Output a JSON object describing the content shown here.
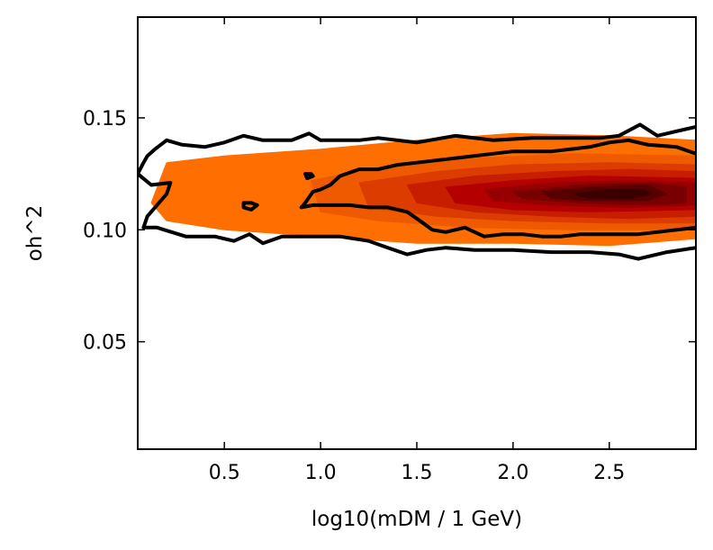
{
  "chart_data": {
    "type": "contour",
    "title": "",
    "xlabel": "log10(mDM / 1 GeV)",
    "ylabel": "oh^2",
    "xlim": [
      0.05,
      2.95
    ],
    "ylim": [
      0.002,
      0.195
    ],
    "xticks": [
      {
        "value": 0.5,
        "label": "0.5"
      },
      {
        "value": 1.0,
        "label": "1.0"
      },
      {
        "value": 1.5,
        "label": "1.5"
      },
      {
        "value": 2.0,
        "label": "2.0"
      },
      {
        "value": 2.5,
        "label": "2.5"
      }
    ],
    "yticks": [
      {
        "value": 0.05,
        "label": "0.05"
      },
      {
        "value": 0.1,
        "label": "0.10"
      },
      {
        "value": 0.15,
        "label": "0.15"
      }
    ],
    "colormap": [
      "#ff6e00",
      "#ef5a00",
      "#dc3c00",
      "#c81e00",
      "#b40000",
      "#960000",
      "#780000",
      "#580000",
      "#3a0000"
    ],
    "filled_levels": [
      {
        "level": 1,
        "color": "#ff6e00",
        "polygon": [
          [
            0.2,
            0.13
          ],
          [
            0.5,
            0.133
          ],
          [
            1.0,
            0.136
          ],
          [
            1.5,
            0.14
          ],
          [
            2.0,
            0.143
          ],
          [
            2.5,
            0.142
          ],
          [
            2.95,
            0.14
          ],
          [
            2.95,
            0.096
          ],
          [
            2.5,
            0.093
          ],
          [
            2.0,
            0.094
          ],
          [
            1.5,
            0.094
          ],
          [
            1.0,
            0.097
          ],
          [
            0.5,
            0.1
          ],
          [
            0.2,
            0.104
          ],
          [
            0.12,
            0.112
          ]
        ]
      },
      {
        "level": 2,
        "color": "#ef5a00",
        "polygon": [
          [
            0.95,
            0.122
          ],
          [
            1.3,
            0.128
          ],
          [
            1.8,
            0.132
          ],
          [
            2.3,
            0.134
          ],
          [
            2.95,
            0.133
          ],
          [
            2.95,
            0.1
          ],
          [
            2.3,
            0.1
          ],
          [
            1.8,
            0.101
          ],
          [
            1.3,
            0.104
          ],
          [
            1.0,
            0.108
          ]
        ]
      },
      {
        "level": 3,
        "color": "#dc3c00",
        "polygon": [
          [
            1.2,
            0.121
          ],
          [
            1.6,
            0.126
          ],
          [
            2.0,
            0.129
          ],
          [
            2.5,
            0.13
          ],
          [
            2.95,
            0.129
          ],
          [
            2.95,
            0.103
          ],
          [
            2.5,
            0.103
          ],
          [
            2.0,
            0.104
          ],
          [
            1.6,
            0.106
          ],
          [
            1.25,
            0.11
          ]
        ]
      },
      {
        "level": 4,
        "color": "#c81e00",
        "polygon": [
          [
            1.45,
            0.12
          ],
          [
            1.8,
            0.124
          ],
          [
            2.2,
            0.126
          ],
          [
            2.6,
            0.127
          ],
          [
            2.95,
            0.126
          ],
          [
            2.95,
            0.106
          ],
          [
            2.6,
            0.105
          ],
          [
            2.2,
            0.106
          ],
          [
            1.8,
            0.108
          ],
          [
            1.5,
            0.112
          ]
        ]
      },
      {
        "level": 5,
        "color": "#b40000",
        "polygon": [
          [
            1.65,
            0.119
          ],
          [
            2.0,
            0.122
          ],
          [
            2.4,
            0.124
          ],
          [
            2.95,
            0.123
          ],
          [
            2.95,
            0.109
          ],
          [
            2.4,
            0.108
          ],
          [
            2.0,
            0.109
          ],
          [
            1.7,
            0.112
          ]
        ]
      },
      {
        "level": 6,
        "color": "#960000",
        "polygon": [
          [
            1.85,
            0.118
          ],
          [
            2.2,
            0.121
          ],
          [
            2.6,
            0.122
          ],
          [
            2.95,
            0.121
          ],
          [
            2.95,
            0.111
          ],
          [
            2.6,
            0.11
          ],
          [
            2.2,
            0.111
          ],
          [
            1.9,
            0.113
          ]
        ]
      },
      {
        "level": 7,
        "color": "#780000",
        "polygon": [
          [
            2.0,
            0.117
          ],
          [
            2.35,
            0.12
          ],
          [
            2.7,
            0.121
          ],
          [
            2.9,
            0.119
          ],
          [
            2.9,
            0.112
          ],
          [
            2.7,
            0.111
          ],
          [
            2.35,
            0.112
          ],
          [
            2.05,
            0.114
          ]
        ]
      },
      {
        "level": 8,
        "color": "#580000",
        "polygon": [
          [
            2.15,
            0.117
          ],
          [
            2.4,
            0.119
          ],
          [
            2.7,
            0.12
          ],
          [
            2.8,
            0.116
          ],
          [
            2.7,
            0.113
          ],
          [
            2.4,
            0.113
          ],
          [
            2.2,
            0.114
          ]
        ]
      },
      {
        "level": 9,
        "color": "#3a0000",
        "polygon": [
          [
            2.3,
            0.116
          ],
          [
            2.5,
            0.118
          ],
          [
            2.68,
            0.118
          ],
          [
            2.72,
            0.116
          ],
          [
            2.62,
            0.114
          ],
          [
            2.4,
            0.114
          ]
        ]
      }
    ],
    "contour_lines": [
      {
        "name": "outer",
        "closed": false,
        "points": [
          [
            2.95,
            0.146
          ],
          [
            2.85,
            0.144
          ],
          [
            2.75,
            0.142
          ],
          [
            2.66,
            0.147
          ],
          [
            2.55,
            0.142
          ],
          [
            2.45,
            0.141
          ],
          [
            2.3,
            0.141
          ],
          [
            2.1,
            0.141
          ],
          [
            1.9,
            0.14
          ],
          [
            1.7,
            0.142
          ],
          [
            1.5,
            0.139
          ],
          [
            1.3,
            0.141
          ],
          [
            1.2,
            0.14
          ],
          [
            1.1,
            0.14
          ],
          [
            1.0,
            0.14
          ],
          [
            0.94,
            0.143
          ],
          [
            0.85,
            0.14
          ],
          [
            0.7,
            0.14
          ],
          [
            0.6,
            0.142
          ],
          [
            0.5,
            0.139
          ],
          [
            0.4,
            0.137
          ],
          [
            0.28,
            0.138
          ],
          [
            0.2,
            0.14
          ],
          [
            0.14,
            0.136
          ],
          [
            0.1,
            0.133
          ],
          [
            0.08,
            0.13
          ],
          [
            0.05,
            0.125
          ],
          [
            0.12,
            0.12
          ],
          [
            0.22,
            0.121
          ],
          [
            0.2,
            0.116
          ],
          [
            0.15,
            0.111
          ],
          [
            0.1,
            0.106
          ],
          [
            0.08,
            0.101
          ],
          [
            0.15,
            0.101
          ],
          [
            0.3,
            0.097
          ],
          [
            0.45,
            0.097
          ],
          [
            0.55,
            0.095
          ],
          [
            0.63,
            0.098
          ],
          [
            0.7,
            0.094
          ],
          [
            0.8,
            0.097
          ],
          [
            0.9,
            0.097
          ],
          [
            1.0,
            0.097
          ],
          [
            1.1,
            0.097
          ],
          [
            1.25,
            0.095
          ],
          [
            1.35,
            0.092
          ],
          [
            1.45,
            0.089
          ],
          [
            1.55,
            0.091
          ],
          [
            1.65,
            0.092
          ],
          [
            1.8,
            0.091
          ],
          [
            2.0,
            0.091
          ],
          [
            2.2,
            0.09
          ],
          [
            2.4,
            0.09
          ],
          [
            2.55,
            0.089
          ],
          [
            2.65,
            0.087
          ],
          [
            2.8,
            0.09
          ],
          [
            2.95,
            0.092
          ]
        ]
      },
      {
        "name": "inner",
        "closed": false,
        "points": [
          [
            2.95,
            0.134
          ],
          [
            2.85,
            0.137
          ],
          [
            2.7,
            0.138
          ],
          [
            2.6,
            0.14
          ],
          [
            2.5,
            0.139
          ],
          [
            2.4,
            0.137
          ],
          [
            2.3,
            0.136
          ],
          [
            2.2,
            0.135
          ],
          [
            2.1,
            0.135
          ],
          [
            2.0,
            0.135
          ],
          [
            1.9,
            0.134
          ],
          [
            1.8,
            0.133
          ],
          [
            1.7,
            0.132
          ],
          [
            1.6,
            0.131
          ],
          [
            1.5,
            0.13
          ],
          [
            1.4,
            0.129
          ],
          [
            1.3,
            0.127
          ],
          [
            1.2,
            0.127
          ],
          [
            1.1,
            0.124
          ],
          [
            1.05,
            0.12
          ],
          [
            1.0,
            0.118
          ],
          [
            0.96,
            0.117
          ],
          [
            0.92,
            0.112
          ],
          [
            0.9,
            0.11
          ],
          [
            0.96,
            0.111
          ],
          [
            1.05,
            0.111
          ],
          [
            1.15,
            0.111
          ],
          [
            1.25,
            0.11
          ],
          [
            1.35,
            0.11
          ],
          [
            1.45,
            0.108
          ],
          [
            1.5,
            0.105
          ],
          [
            1.58,
            0.1
          ],
          [
            1.65,
            0.099
          ],
          [
            1.75,
            0.101
          ],
          [
            1.85,
            0.097
          ],
          [
            1.95,
            0.098
          ],
          [
            2.05,
            0.098
          ],
          [
            2.15,
            0.097
          ],
          [
            2.25,
            0.097
          ],
          [
            2.35,
            0.098
          ],
          [
            2.45,
            0.098
          ],
          [
            2.55,
            0.098
          ],
          [
            2.65,
            0.098
          ],
          [
            2.75,
            0.099
          ],
          [
            2.85,
            0.1
          ],
          [
            2.95,
            0.101
          ]
        ]
      },
      {
        "name": "island-a",
        "closed": true,
        "points": [
          [
            0.6,
            0.112
          ],
          [
            0.64,
            0.112
          ],
          [
            0.67,
            0.111
          ],
          [
            0.64,
            0.109
          ],
          [
            0.6,
            0.11
          ]
        ]
      },
      {
        "name": "island-b",
        "closed": true,
        "points": [
          [
            0.92,
            0.125
          ],
          [
            0.95,
            0.125
          ],
          [
            0.96,
            0.124
          ],
          [
            0.93,
            0.123
          ]
        ]
      }
    ]
  }
}
